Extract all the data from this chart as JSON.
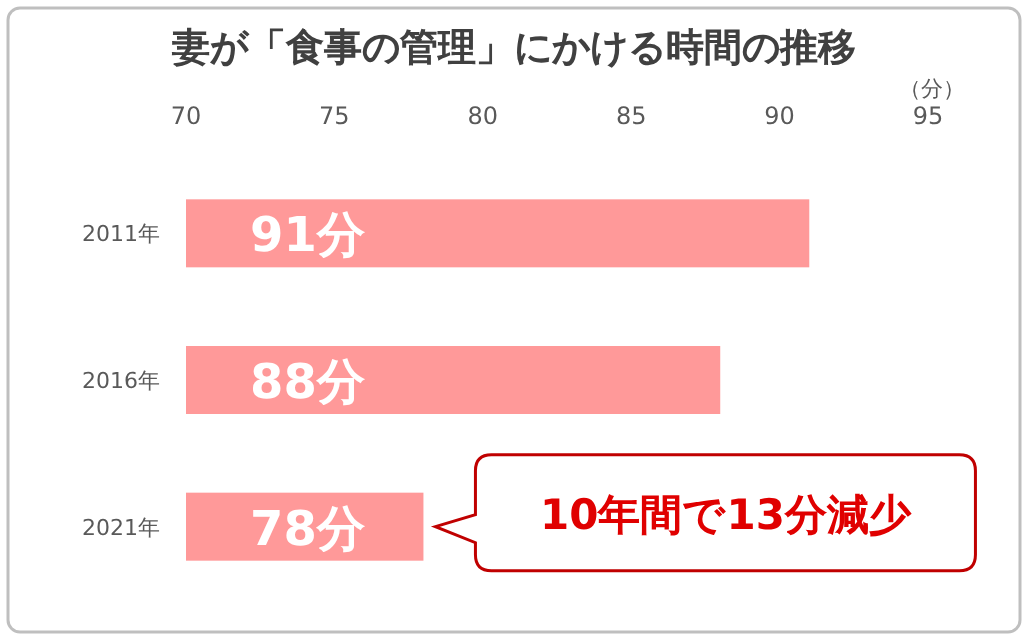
{
  "chart_data": {
    "type": "bar",
    "orientation": "horizontal",
    "title": "妻が「食事の管理」にかける時間の推移",
    "xlabel": "（分）",
    "categories": [
      "2011年",
      "2016年",
      "2021年"
    ],
    "values": [
      91,
      88,
      78
    ],
    "color": "#ff9999",
    "value_labels": [
      "91分",
      "88分",
      "78分"
    ],
    "xlim": [
      70,
      95
    ],
    "xticks": [
      70,
      75,
      80,
      85,
      90,
      95
    ],
    "annotations": [
      "10年間で13分減少"
    ]
  }
}
